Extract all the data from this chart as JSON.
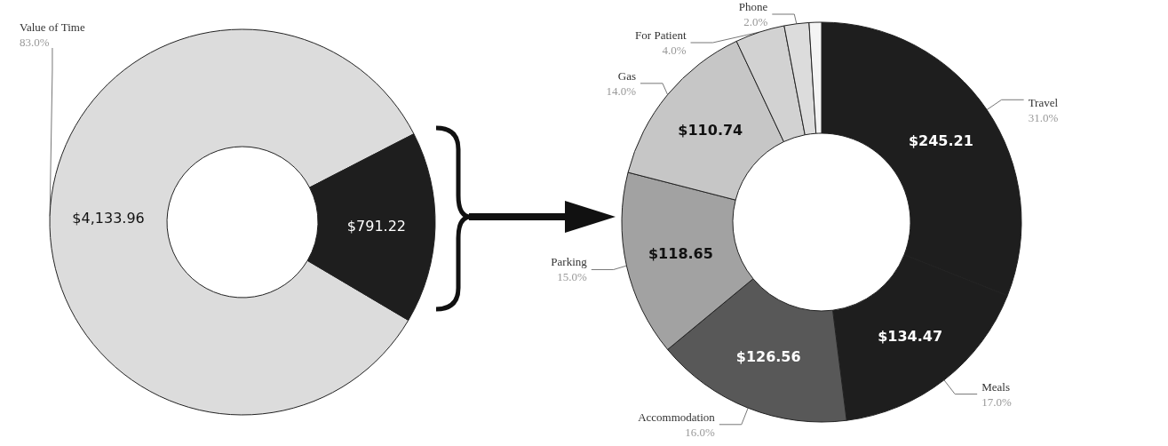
{
  "chart_data": [
    {
      "type": "donut",
      "categories": [
        "Value of Time",
        null
      ],
      "values": [
        4133.96,
        791.22
      ],
      "colors": [
        "#dcdcdc",
        "#1e1e1e"
      ],
      "value_labels": [
        "$4,133.96",
        "$791.22"
      ],
      "annotations": [
        {
          "text": "83.0%",
          "x": "Value of Time"
        }
      ],
      "legend": false
    },
    {
      "type": "donut",
      "categories": [
        "Travel",
        "Meals",
        "Accommodation",
        "Parking",
        "Gas",
        "For Patient",
        "Phone",
        null
      ],
      "values": [
        245.21,
        134.47,
        126.56,
        118.65,
        110.74,
        31.65,
        15.82,
        7.91
      ],
      "colors": [
        "#1e1e1e",
        "#1e1e1e",
        "#585858",
        "#a2a2a2",
        "#c6c6c6",
        "#d2d2d2",
        "#dcdcdc",
        "#f4f4f4"
      ],
      "value_labels": [
        "$245.21",
        "$134.47",
        "$126.56",
        "$118.65",
        "$110.74",
        null,
        null,
        null
      ],
      "annotations": [
        {
          "text": "31.0%",
          "x": "Travel"
        },
        {
          "text": "17.0%",
          "x": "Meals"
        },
        {
          "text": "16.0%",
          "x": "Accommodation"
        },
        {
          "text": "15.0%",
          "x": "Parking"
        },
        {
          "text": "14.0%",
          "x": "Gas"
        },
        {
          "text": "4.0%",
          "x": "For Patient"
        },
        {
          "text": "2.0%",
          "x": "Phone"
        }
      ],
      "legend": false
    }
  ]
}
